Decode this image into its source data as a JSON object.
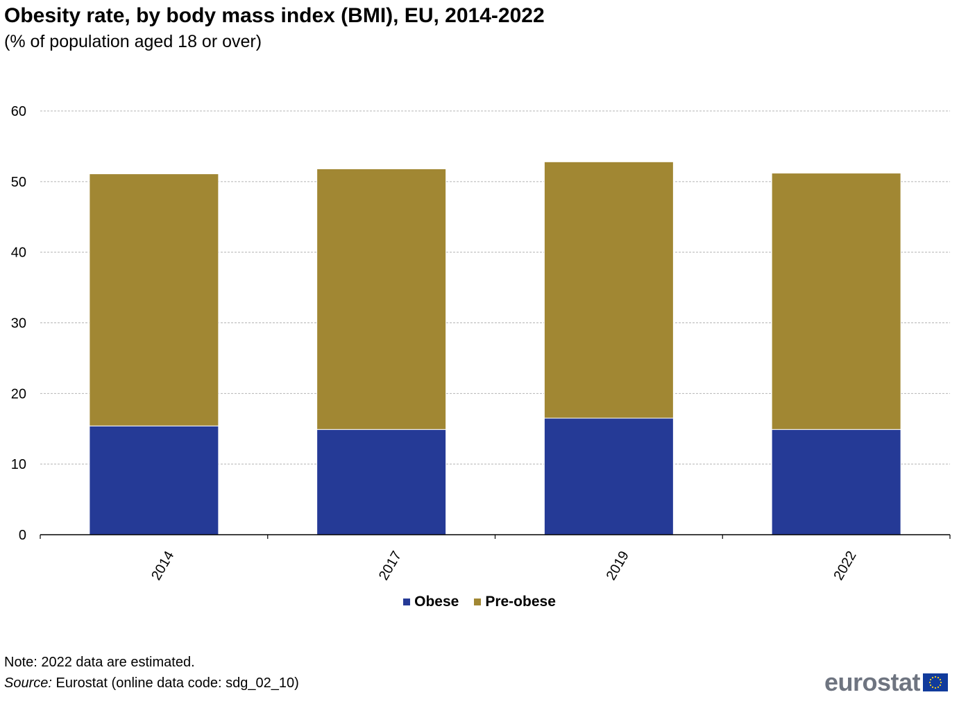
{
  "header": {
    "title": "Obesity rate, by body mass index (BMI), EU, 2014-2022",
    "subtitle": "(% of population aged 18 or over)"
  },
  "footer": {
    "note": "Note: 2022 data are estimated.",
    "source_label": "Source:",
    "source_text": " Eurostat (online data code: sdg_02_10)",
    "logo_text": "eurostat",
    "logo_icon": "eu-flag-icon"
  },
  "colors": {
    "obese": "#253a96",
    "pre_obese": "#a18733",
    "grid": "#b4b4b4",
    "axis": "#000000"
  },
  "chart_data": {
    "type": "bar",
    "stacked": true,
    "categories": [
      "2014",
      "2017",
      "2019",
      "2022"
    ],
    "series": [
      {
        "name": "Obese",
        "color": "#253a96",
        "values": [
          15.4,
          14.9,
          16.5,
          14.9
        ]
      },
      {
        "name": "Pre-obese",
        "color": "#a18733",
        "values": [
          35.7,
          36.9,
          36.3,
          36.3
        ]
      }
    ],
    "yticks": [
      0,
      10,
      20,
      30,
      40,
      50,
      60
    ],
    "ylim": [
      0,
      60
    ],
    "grid": true,
    "legend": "bottom-center",
    "title": "Obesity rate, by body mass index (BMI), EU, 2014-2022",
    "subtitle": "(% of population aged 18 or over)",
    "xlabel": "",
    "ylabel": ""
  }
}
